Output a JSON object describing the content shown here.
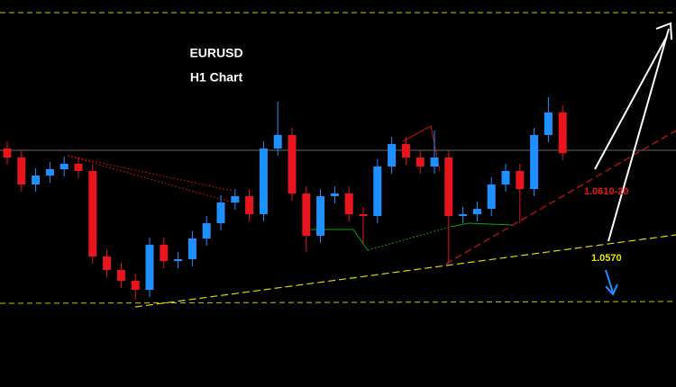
{
  "chart_data": {
    "type": "candlestick",
    "title": "EURUSD",
    "subtitle": "H1 Chart",
    "annotations": [
      "1.0610-20",
      "1.0570"
    ],
    "up_color": "#1e90ff",
    "down_color": "#e8141e",
    "ylim": [
      1.0408,
      1.0838
    ],
    "candles": [
      {
        "open": 1.0673,
        "high": 1.0681,
        "low": 1.0655,
        "close": 1.0663
      },
      {
        "open": 1.0663,
        "high": 1.0671,
        "low": 1.0625,
        "close": 1.0633
      },
      {
        "open": 1.0633,
        "high": 1.0651,
        "low": 1.0625,
        "close": 1.0643
      },
      {
        "open": 1.0643,
        "high": 1.0658,
        "low": 1.0635,
        "close": 1.065
      },
      {
        "open": 1.065,
        "high": 1.0664,
        "low": 1.0642,
        "close": 1.0656
      },
      {
        "open": 1.0656,
        "high": 1.0664,
        "low": 1.064,
        "close": 1.0648
      },
      {
        "open": 1.0648,
        "high": 1.0656,
        "low": 1.0545,
        "close": 1.0553
      },
      {
        "open": 1.0553,
        "high": 1.0561,
        "low": 1.053,
        "close": 1.0538
      },
      {
        "open": 1.0538,
        "high": 1.0546,
        "low": 1.0518,
        "close": 1.0526
      },
      {
        "open": 1.0526,
        "high": 1.0534,
        "low": 1.0505,
        "close": 1.0516
      },
      {
        "open": 1.0516,
        "high": 1.0574,
        "low": 1.0508,
        "close": 1.0566
      },
      {
        "open": 1.0566,
        "high": 1.0574,
        "low": 1.054,
        "close": 1.0548
      },
      {
        "open": 1.0548,
        "high": 1.0558,
        "low": 1.054,
        "close": 1.055
      },
      {
        "open": 1.055,
        "high": 1.0581,
        "low": 1.0542,
        "close": 1.0573
      },
      {
        "open": 1.0573,
        "high": 1.0598,
        "low": 1.0565,
        "close": 1.059
      },
      {
        "open": 1.059,
        "high": 1.0621,
        "low": 1.0582,
        "close": 1.0613
      },
      {
        "open": 1.0613,
        "high": 1.0628,
        "low": 1.0605,
        "close": 1.062
      },
      {
        "open": 1.062,
        "high": 1.0628,
        "low": 1.0592,
        "close": 1.06
      },
      {
        "open": 1.06,
        "high": 1.0681,
        "low": 1.0592,
        "close": 1.0673
      },
      {
        "open": 1.0673,
        "high": 1.0725,
        "low": 1.0665,
        "close": 1.0688
      },
      {
        "open": 1.0688,
        "high": 1.0696,
        "low": 1.0615,
        "close": 1.0623
      },
      {
        "open": 1.0623,
        "high": 1.0631,
        "low": 1.0558,
        "close": 1.0576
      },
      {
        "open": 1.0576,
        "high": 1.0628,
        "low": 1.0568,
        "close": 1.062
      },
      {
        "open": 1.062,
        "high": 1.0631,
        "low": 1.0612,
        "close": 1.0623
      },
      {
        "open": 1.0623,
        "high": 1.0631,
        "low": 1.0592,
        "close": 1.06
      },
      {
        "open": 1.06,
        "high": 1.0608,
        "low": 1.0568,
        "close": 1.0598
      },
      {
        "open": 1.0598,
        "high": 1.0661,
        "low": 1.059,
        "close": 1.0653
      },
      {
        "open": 1.0653,
        "high": 1.0686,
        "low": 1.0645,
        "close": 1.0678
      },
      {
        "open": 1.0678,
        "high": 1.0686,
        "low": 1.0655,
        "close": 1.0663
      },
      {
        "open": 1.0663,
        "high": 1.0671,
        "low": 1.0645,
        "close": 1.0653
      },
      {
        "open": 1.0653,
        "high": 1.0693,
        "low": 1.0645,
        "close": 1.0663
      },
      {
        "open": 1.0663,
        "high": 1.0671,
        "low": 1.0545,
        "close": 1.0598
      },
      {
        "open": 1.0598,
        "high": 1.0608,
        "low": 1.059,
        "close": 1.06
      },
      {
        "open": 1.06,
        "high": 1.0614,
        "low": 1.0592,
        "close": 1.0606
      },
      {
        "open": 1.0606,
        "high": 1.0641,
        "low": 1.0598,
        "close": 1.0633
      },
      {
        "open": 1.0633,
        "high": 1.0656,
        "low": 1.0625,
        "close": 1.0648
      },
      {
        "open": 1.0648,
        "high": 1.0656,
        "low": 1.059,
        "close": 1.0628
      },
      {
        "open": 1.0628,
        "high": 1.0696,
        "low": 1.062,
        "close": 1.0688
      },
      {
        "open": 1.0688,
        "high": 1.073,
        "low": 1.068,
        "close": 1.0713
      },
      {
        "open": 1.0713,
        "high": 1.0721,
        "low": 1.066,
        "close": 1.0668
      }
    ]
  }
}
